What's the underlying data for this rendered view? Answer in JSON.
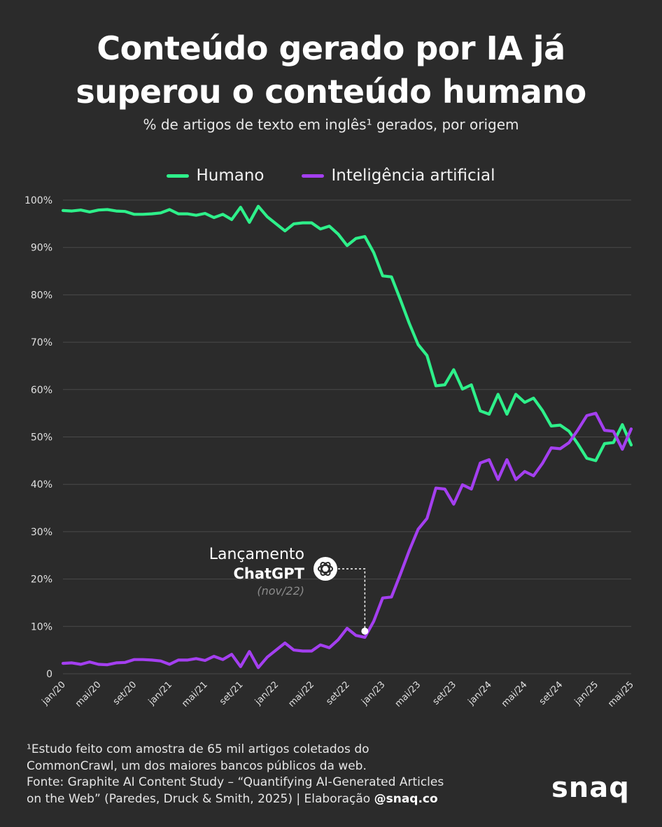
{
  "title_line1": "Conteúdo gerado por IA já",
  "title_line2": "superou o conteúdo humano",
  "subtitle": "% de artigos de texto em inglês¹ gerados, por origem",
  "colors": {
    "human": "#2ef08a",
    "ai": "#a43ff0",
    "grid": "#4a4a4a",
    "tick": "#e0e0e0"
  },
  "chart_data": {
    "type": "line",
    "title": "Conteúdo gerado por IA já superou o conteúdo humano",
    "subtitle": "% de artigos de texto em inglês¹ gerados, por origem",
    "xlabel": "",
    "ylabel": "",
    "ylim": [
      0,
      100
    ],
    "y_ticks": [
      "0",
      "10%",
      "20%",
      "30%",
      "40%",
      "50%",
      "60%",
      "70%",
      "80%",
      "90%",
      "100%"
    ],
    "x_ticks": [
      {
        "label": "jan/20",
        "index": 0
      },
      {
        "label": "mai/20",
        "index": 4
      },
      {
        "label": "set/20",
        "index": 8
      },
      {
        "label": "jan/21",
        "index": 12
      },
      {
        "label": "mai/21",
        "index": 16
      },
      {
        "label": "set/21",
        "index": 20
      },
      {
        "label": "jan/22",
        "index": 24
      },
      {
        "label": "mai/22",
        "index": 28
      },
      {
        "label": "set/22",
        "index": 32
      },
      {
        "label": "jan/23",
        "index": 36
      },
      {
        "label": "mai/23",
        "index": 40
      },
      {
        "label": "set/23",
        "index": 44
      },
      {
        "label": "jan/24",
        "index": 48
      },
      {
        "label": "mai/24",
        "index": 52
      },
      {
        "label": "set/24",
        "index": 56
      },
      {
        "label": "jan/25",
        "index": 60
      },
      {
        "label": "mai/25",
        "index": 64
      }
    ],
    "legend_position": "top-center",
    "series": [
      {
        "name": "Humano",
        "values": [
          97.8,
          97.7,
          97.9,
          97.5,
          97.9,
          98.0,
          97.7,
          97.6,
          97.0,
          97.0,
          97.1,
          97.3,
          98.0,
          97.1,
          97.1,
          96.8,
          97.2,
          96.3,
          97.0,
          95.9,
          98.5,
          95.3,
          98.7,
          96.5,
          95.0,
          93.5,
          95.0,
          95.2,
          95.2,
          93.9,
          94.5,
          92.8,
          90.4,
          91.9,
          92.3,
          88.9,
          84.0,
          83.8,
          79.0,
          74.0,
          69.5,
          67.2,
          60.8,
          61.0,
          64.2,
          60.1,
          61.0,
          55.5,
          54.8,
          59.0,
          54.8,
          59.0,
          57.3,
          58.2,
          55.6,
          52.3,
          52.5,
          51.2,
          48.5,
          45.5,
          45.0,
          48.6,
          48.8,
          52.6,
          48.3
        ]
      },
      {
        "name": "Inteligência artificial",
        "values": [
          2.2,
          2.3,
          2.0,
          2.5,
          2.0,
          1.9,
          2.3,
          2.4,
          3.0,
          3.0,
          2.9,
          2.7,
          2.0,
          2.9,
          2.9,
          3.2,
          2.8,
          3.7,
          3.0,
          4.1,
          1.5,
          4.7,
          1.3,
          3.5,
          5.0,
          6.5,
          5.0,
          4.8,
          4.8,
          6.1,
          5.5,
          7.2,
          9.6,
          8.1,
          7.7,
          11.1,
          16.0,
          16.2,
          21.0,
          26.0,
          30.5,
          32.8,
          39.2,
          39.0,
          35.8,
          39.9,
          39.0,
          44.5,
          45.2,
          41.0,
          45.2,
          41.0,
          42.7,
          41.8,
          44.4,
          47.7,
          47.5,
          48.8,
          51.5,
          54.5,
          55.0,
          51.4,
          51.2,
          47.4,
          51.7
        ]
      }
    ],
    "annotation": {
      "label_line1": "Lançamento",
      "label_line2": "ChatGPT",
      "label_line3": "(nov/22)",
      "x_index": 34,
      "y_value": 9
    }
  },
  "footnote_line1": "¹Estudo feito com amostra de 65 mil artigos coletados do",
  "footnote_line2": "CommonCrawl, um dos maiores bancos públicos da web.",
  "footnote_line3": "Fonte: Graphite AI Content Study – “Quantifying AI-Generated Articles",
  "footnote_line4_a": "on the Web” (Paredes, Druck & Smith, 2025) | Elaboração ",
  "footnote_line4_b": "@snaq.co",
  "logo": "snaq"
}
